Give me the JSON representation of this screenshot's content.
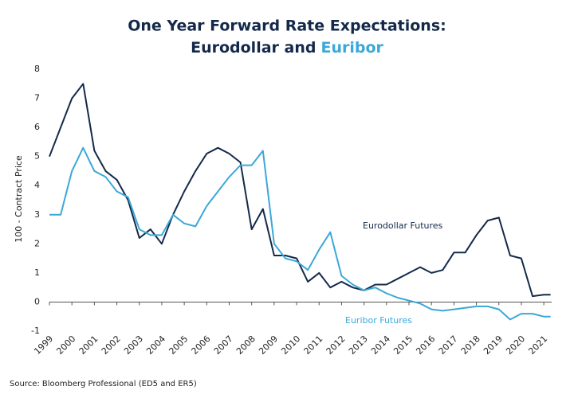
{
  "chart_data": {
    "type": "line",
    "title": [
      "One Year Forward Rate Expectations:",
      "Eurodollar and",
      "Euribor"
    ],
    "y_label": "100 - Contract Price",
    "source": "Source: Bloomberg Professional (ED5 and ER5)",
    "x": [
      1999,
      1999.5,
      2000,
      2000.5,
      2001,
      2001.5,
      2002,
      2002.5,
      2003,
      2003.5,
      2004,
      2004.5,
      2005,
      2005.5,
      2006,
      2006.5,
      2007,
      2007.5,
      2008,
      2008.5,
      2009,
      2009.5,
      2010,
      2010.5,
      2011,
      2011.5,
      2012,
      2012.5,
      2013,
      2013.5,
      2014,
      2014.5,
      2015,
      2015.5,
      2016,
      2016.5,
      2017,
      2017.5,
      2018,
      2018.5,
      2019,
      2019.5,
      2020,
      2020.5,
      2021,
      2021.3
    ],
    "series": [
      {
        "name": "Eurodollar Futures",
        "color": "#14294a",
        "values": [
          5.0,
          6.0,
          7.0,
          7.5,
          5.2,
          4.5,
          4.2,
          3.5,
          2.2,
          2.5,
          2.0,
          3.0,
          3.8,
          4.5,
          5.1,
          5.3,
          5.1,
          4.8,
          2.5,
          3.2,
          1.6,
          1.6,
          1.5,
          0.7,
          1.0,
          0.5,
          0.7,
          0.5,
          0.4,
          0.6,
          0.6,
          0.8,
          1.0,
          1.2,
          1.0,
          1.1,
          1.7,
          1.7,
          2.3,
          2.8,
          2.9,
          1.6,
          1.5,
          0.2,
          0.25,
          0.25
        ]
      },
      {
        "name": "Euribor Futures",
        "color": "#3aa8d8",
        "values": [
          3.0,
          3.0,
          4.5,
          5.3,
          4.5,
          4.3,
          3.8,
          3.6,
          2.5,
          2.3,
          2.3,
          3.0,
          2.7,
          2.6,
          3.3,
          3.8,
          4.3,
          4.7,
          4.7,
          5.2,
          2.0,
          1.5,
          1.4,
          1.1,
          1.8,
          2.4,
          0.9,
          0.6,
          0.4,
          0.5,
          0.3,
          0.15,
          0.05,
          -0.05,
          -0.25,
          -0.3,
          -0.25,
          -0.2,
          -0.15,
          -0.15,
          -0.25,
          -0.6,
          -0.4,
          -0.4,
          -0.5,
          -0.5
        ]
      }
    ],
    "xlim": [
      1999,
      2021.35
    ],
    "xticks": [
      1999,
      2000,
      2001,
      2002,
      2003,
      2004,
      2005,
      2006,
      2007,
      2008,
      2009,
      2010,
      2011,
      2012,
      2013,
      2014,
      2015,
      2016,
      2017,
      2018,
      2019,
      2020,
      2021
    ],
    "ylim": [
      -1,
      8
    ],
    "yticks": [
      -1,
      0,
      1,
      2,
      3,
      4,
      5,
      6,
      7,
      8
    ],
    "grid": false
  }
}
